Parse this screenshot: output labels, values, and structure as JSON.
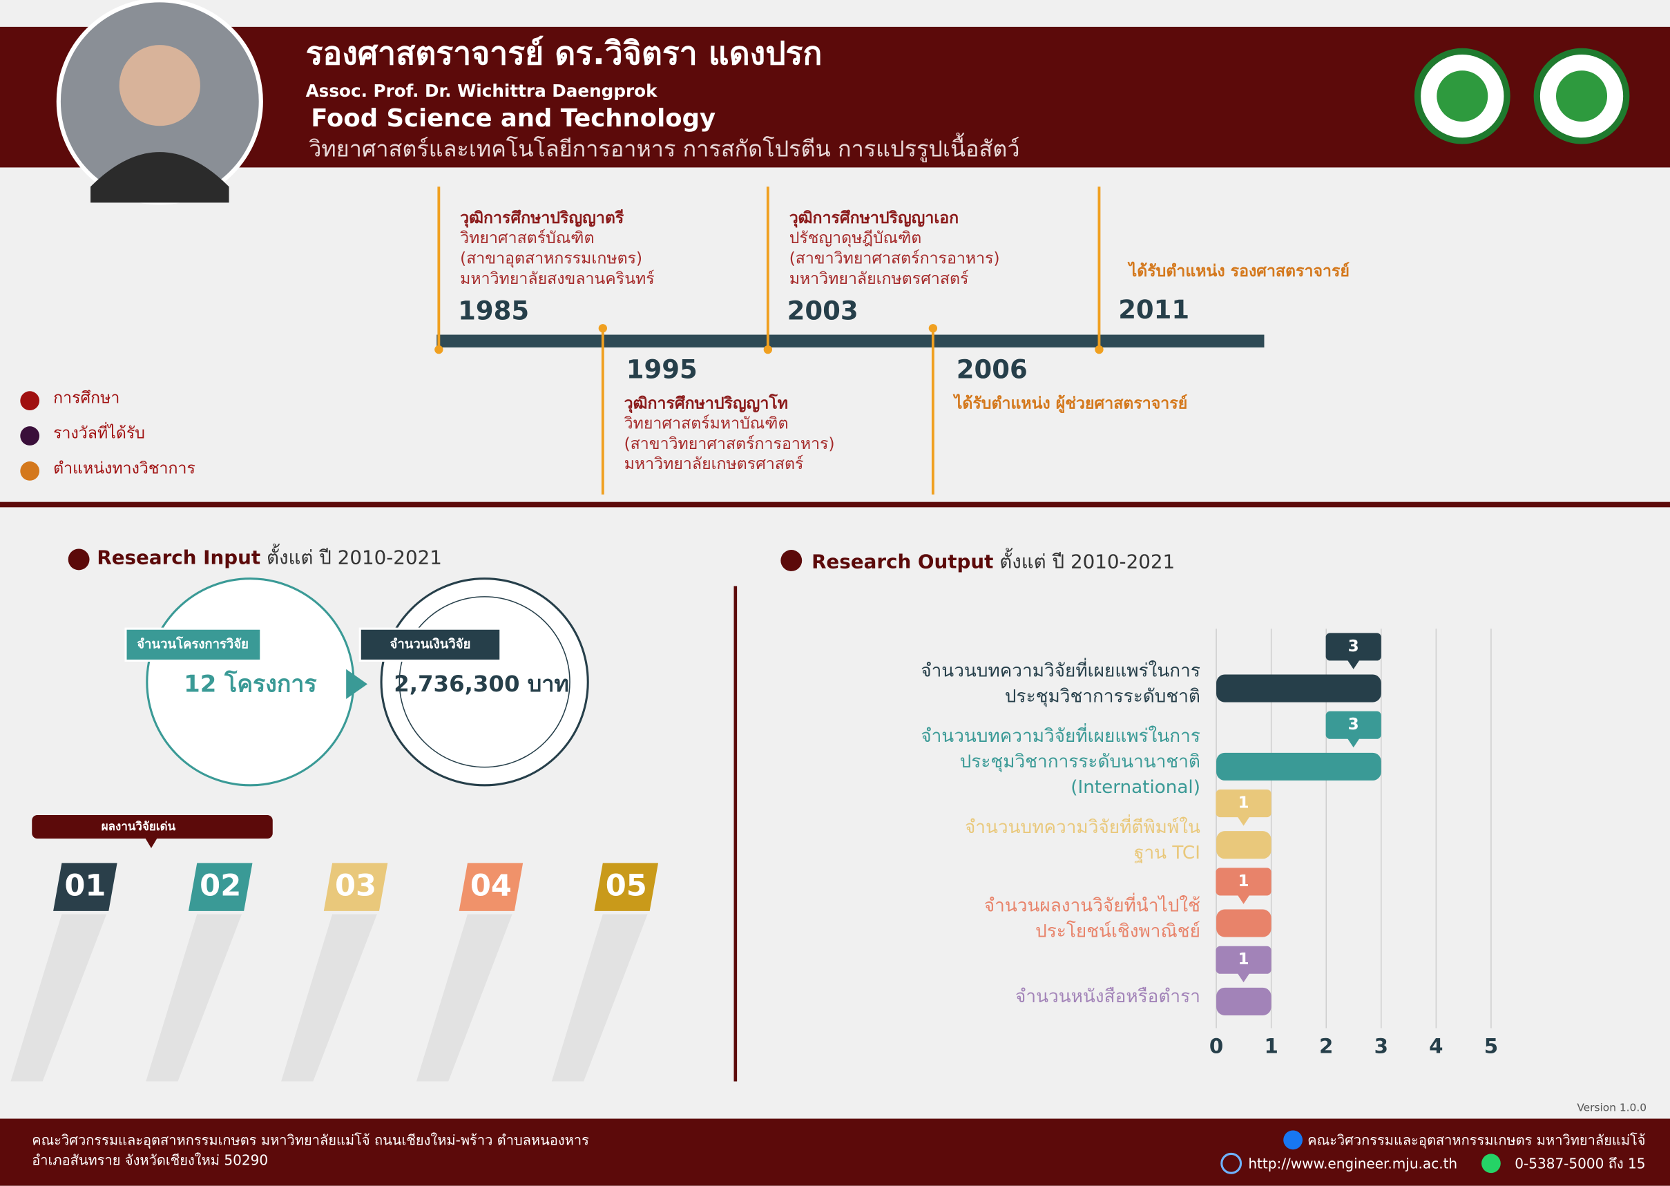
{
  "header": {
    "name_th": "รองศาสตราจารย์ ดร.วิจิตรา แดงปรก",
    "name_en": "Assoc. Prof. Dr. Wichittra Daengprok",
    "department": "Food Science and Technology",
    "research_areas": "วิทยาศาสตร์และเทคโนโลยีการอาหาร การสกัดโปรตีน การแปรรูปเนื้อสัตว์"
  },
  "timeline": [
    {
      "year": "1985",
      "title": "วุฒิการศึกษาปริญญาตรี",
      "lines": [
        "วิทยาศาสตร์บัณฑิต",
        "(สาขาอุตสาหกรรมเกษตร)",
        "มหาวิทยาลัยสงขลานครินทร์"
      ]
    },
    {
      "year": "1995",
      "title": "วุฒิการศึกษาปริญญาโท",
      "lines": [
        "วิทยาศาสตร์มหาบัณฑิต",
        "(สาขาวิทยาศาสตร์การอาหาร)",
        "มหาวิทยาลัยเกษตรศาสตร์"
      ]
    },
    {
      "year": "2003",
      "title": "วุฒิการศึกษาปริญญาเอก",
      "lines": [
        "ปรัชญาดุษฎีบัณฑิต",
        "(สาขาวิทยาศาสตร์การอาหาร)",
        "มหาวิทยาลัยเกษตรศาสตร์"
      ]
    },
    {
      "year": "2006",
      "title": "ได้รับตำแหน่ง ผู้ช่วยศาสตราจารย์",
      "lines": []
    },
    {
      "year": "2011",
      "title": "ได้รับตำแหน่ง รองศาสตราจารย์",
      "lines": []
    }
  ],
  "legend": [
    {
      "label": "การศึกษา",
      "color": "#a01010"
    },
    {
      "label": "รางวัลที่ได้รับ",
      "color": "#3a0f3a"
    },
    {
      "label": "ตำแหน่งทางวิชาการ",
      "color": "#d4781c"
    }
  ],
  "research_input": {
    "heading": "Research Input",
    "period": "ตั้งแต่ ปี 2010-2021",
    "projects_label": "จำนวนโครงการวิจัย",
    "projects": "12 โครงการ",
    "funding_label": "จำนวนเงินวิจัย",
    "funding": "2,736,300 บาท",
    "highlights_label": "ผลงานวิจัยเด่น",
    "highlights": [
      "01",
      "02",
      "03",
      "04",
      "05"
    ]
  },
  "chart_data": {
    "type": "hbar",
    "title": "Research Output",
    "subtitle": "ตั้งแต่ ปี 2010-2021",
    "categories": [
      [
        "จำนวนบทความวิจัยที่เผยแพร่ในการ",
        "ประชุมวิชาการระดับชาติ"
      ],
      [
        "จำนวนบทความวิจัยที่เผยแพร่ในการ",
        "ประชุมวิชาการระดับนานาชาติ",
        "(International)"
      ],
      [
        "จำนวนบทความวิจัยที่ตีพิมพ์ใน",
        "ฐาน TCI"
      ],
      [
        "จำนวนผลงานวิจัยที่นำไปใช้",
        "ประโยชน์เชิงพาณิชย์"
      ],
      [
        "จำนวนหนังสือหรือตำรา"
      ]
    ],
    "values": [
      3,
      3,
      1,
      1,
      1
    ],
    "colors": [
      "#263f4a",
      "#3a9a96",
      "#e9c87b",
      "#e8836a",
      "#a283b8"
    ],
    "xlim": [
      0,
      5
    ],
    "xticks": [
      0,
      1,
      2,
      3,
      4,
      5
    ],
    "grid": true
  },
  "version": "Version 1.0.0",
  "footer": {
    "address": [
      "คณะวิศวกรรมและอุตสาหกรรมเกษตร มหาวิทยาลัยแม่โจ้ ถนนเชียงใหม่-พร้าว ตำบลหนองหาร",
      "อำเภอสันทราย จังหวัดเชียงใหม่ 50290"
    ],
    "facebook": "คณะวิศวกรรมและอุตสาหกรรมเกษตร มหาวิทยาลัยแม่โจ้",
    "website": "http://www.engineer.mju.ac.th",
    "phone": "0-5387-5000 ถึง 15"
  }
}
